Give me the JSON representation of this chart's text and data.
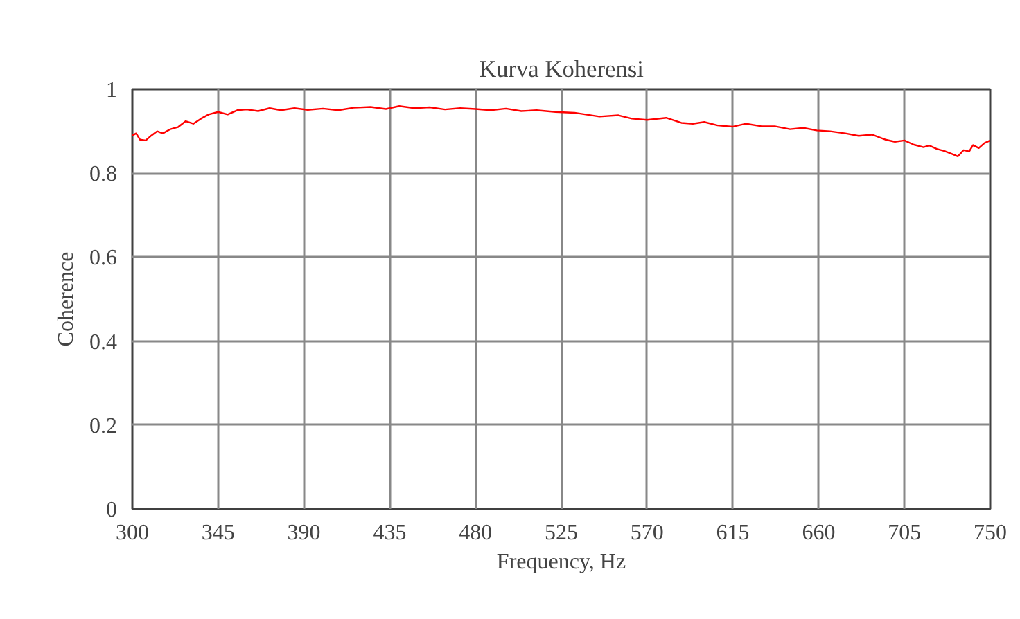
{
  "chart_data": {
    "type": "line",
    "title": "Kurva Koherensi",
    "xlabel": "Frequency, Hz",
    "ylabel": "Coherence",
    "x": [
      300,
      302,
      304,
      307,
      310,
      313,
      316,
      320,
      324,
      328,
      332,
      336,
      340,
      345,
      350,
      355,
      360,
      366,
      372,
      378,
      385,
      392,
      400,
      408,
      416,
      425,
      433,
      440,
      448,
      456,
      464,
      472,
      480,
      488,
      496,
      504,
      512,
      522,
      532,
      545,
      555,
      562,
      570,
      580,
      588,
      594,
      600,
      607,
      615,
      622,
      630,
      637,
      645,
      652,
      659,
      666,
      674,
      681,
      688,
      695,
      700,
      705,
      710,
      715,
      718,
      722,
      726,
      730,
      733,
      736,
      739,
      741,
      744,
      747,
      750
    ],
    "series": [
      {
        "color": "#ff0000",
        "values": [
          0.89,
          0.895,
          0.88,
          0.878,
          0.89,
          0.9,
          0.895,
          0.905,
          0.91,
          0.924,
          0.918,
          0.93,
          0.94,
          0.946,
          0.94,
          0.95,
          0.952,
          0.948,
          0.955,
          0.95,
          0.955,
          0.951,
          0.954,
          0.95,
          0.956,
          0.958,
          0.953,
          0.96,
          0.955,
          0.957,
          0.952,
          0.955,
          0.953,
          0.95,
          0.954,
          0.948,
          0.95,
          0.946,
          0.944,
          0.935,
          0.938,
          0.93,
          0.927,
          0.932,
          0.92,
          0.918,
          0.922,
          0.914,
          0.911,
          0.918,
          0.912,
          0.912,
          0.905,
          0.908,
          0.902,
          0.9,
          0.895,
          0.889,
          0.892,
          0.88,
          0.875,
          0.878,
          0.868,
          0.862,
          0.866,
          0.858,
          0.853,
          0.846,
          0.84,
          0.855,
          0.852,
          0.867,
          0.86,
          0.872,
          0.878
        ]
      }
    ],
    "xlim": [
      300,
      750
    ],
    "ylim": [
      0,
      1
    ],
    "xticks": [
      300,
      345,
      390,
      435,
      480,
      525,
      570,
      615,
      660,
      705,
      750
    ],
    "yticks": [
      0,
      0.2,
      0.4,
      0.6,
      0.8,
      1
    ],
    "grid": true,
    "marker": "none",
    "line_style": "solid"
  }
}
